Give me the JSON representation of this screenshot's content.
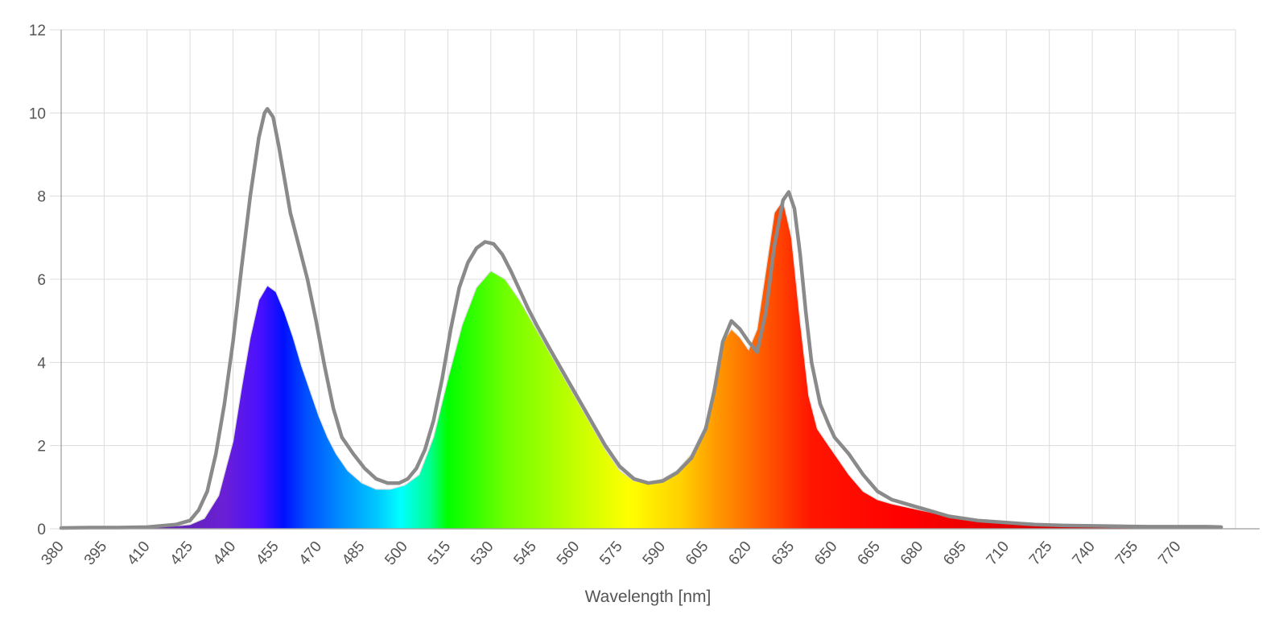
{
  "chart_data": {
    "type": "area",
    "title": "",
    "xlabel": "Wavelength [nm]",
    "ylabel": "",
    "xlim": [
      380,
      790
    ],
    "ylim": [
      0,
      12
    ],
    "grid": true,
    "legend": "none",
    "x_tick_labels": [
      "380",
      "395",
      "410",
      "425",
      "440",
      "455",
      "470",
      "485",
      "500",
      "515",
      "530",
      "545",
      "560",
      "575",
      "590",
      "605",
      "620",
      "635",
      "650",
      "665",
      "680",
      "695",
      "710",
      "725",
      "740",
      "755",
      "770"
    ],
    "y_tick_labels": [
      "0",
      "2",
      "4",
      "6",
      "8",
      "10",
      "12"
    ],
    "series": [
      {
        "style": "spectrum-filled-area",
        "x": [
          380,
          390,
          400,
          410,
          420,
          425,
          430,
          435,
          440,
          443,
          446,
          449,
          452,
          455,
          458,
          461,
          464,
          467,
          470,
          473,
          476,
          480,
          485,
          490,
          495,
          500,
          505,
          510,
          515,
          520,
          525,
          530,
          535,
          540,
          545,
          550,
          555,
          560,
          565,
          570,
          575,
          580,
          585,
          590,
          595,
          600,
          605,
          608,
          611,
          614,
          617,
          620,
          623,
          626,
          629,
          632,
          635,
          638,
          641,
          644,
          647,
          650,
          655,
          660,
          665,
          670,
          680,
          690,
          700,
          710,
          720,
          730,
          740,
          750,
          760,
          770,
          780,
          785
        ],
        "y": [
          0.02,
          0.03,
          0.03,
          0.04,
          0.07,
          0.1,
          0.25,
          0.8,
          2.1,
          3.4,
          4.6,
          5.5,
          5.85,
          5.7,
          5.2,
          4.6,
          3.9,
          3.3,
          2.7,
          2.2,
          1.8,
          1.4,
          1.1,
          0.95,
          0.95,
          1.05,
          1.3,
          2.2,
          3.6,
          4.9,
          5.8,
          6.2,
          6.0,
          5.5,
          4.9,
          4.3,
          3.7,
          3.1,
          2.5,
          1.9,
          1.4,
          1.15,
          1.1,
          1.2,
          1.4,
          1.8,
          2.5,
          3.5,
          4.5,
          4.8,
          4.6,
          4.3,
          4.8,
          6.2,
          7.6,
          7.9,
          7.0,
          5.0,
          3.2,
          2.4,
          2.1,
          1.8,
          1.3,
          0.9,
          0.7,
          0.6,
          0.45,
          0.3,
          0.2,
          0.15,
          0.1,
          0.08,
          0.07,
          0.06,
          0.05,
          0.05,
          0.05,
          0.04
        ]
      },
      {
        "style": "gray-line",
        "color": "#8a8a8a",
        "x": [
          380,
          390,
          400,
          410,
          420,
          425,
          428,
          431,
          434,
          437,
          440,
          443,
          446,
          449,
          451,
          452,
          454,
          456,
          458,
          460,
          463,
          466,
          469,
          472,
          475,
          478,
          482,
          486,
          490,
          494,
          498,
          501,
          504,
          507,
          510,
          513,
          516,
          519,
          522,
          525,
          528,
          531,
          534,
          537,
          540,
          543,
          546,
          550,
          555,
          560,
          565,
          570,
          575,
          580,
          585,
          590,
          595,
          600,
          605,
          608,
          611,
          614,
          617,
          620,
          623,
          626,
          629,
          632,
          634,
          636,
          638,
          640,
          642,
          645,
          648,
          650,
          655,
          660,
          665,
          670,
          680,
          690,
          700,
          710,
          720,
          730,
          740,
          750,
          760,
          770,
          780,
          785
        ],
        "y": [
          0.02,
          0.03,
          0.03,
          0.04,
          0.1,
          0.2,
          0.45,
          0.9,
          1.8,
          3.0,
          4.5,
          6.3,
          8.0,
          9.4,
          10.0,
          10.1,
          9.9,
          9.2,
          8.4,
          7.6,
          6.8,
          6.0,
          5.0,
          3.9,
          2.9,
          2.2,
          1.8,
          1.45,
          1.2,
          1.1,
          1.1,
          1.2,
          1.45,
          1.9,
          2.6,
          3.6,
          4.8,
          5.8,
          6.4,
          6.75,
          6.9,
          6.85,
          6.6,
          6.2,
          5.75,
          5.3,
          4.9,
          4.4,
          3.8,
          3.2,
          2.6,
          2.0,
          1.5,
          1.2,
          1.1,
          1.15,
          1.35,
          1.7,
          2.4,
          3.3,
          4.5,
          5.0,
          4.8,
          4.5,
          4.25,
          5.2,
          6.8,
          7.9,
          8.1,
          7.7,
          6.6,
          5.2,
          4.0,
          3.0,
          2.5,
          2.2,
          1.8,
          1.3,
          0.9,
          0.7,
          0.5,
          0.3,
          0.2,
          0.15,
          0.1,
          0.08,
          0.07,
          0.06,
          0.05,
          0.05,
          0.05,
          0.04
        ]
      }
    ]
  }
}
